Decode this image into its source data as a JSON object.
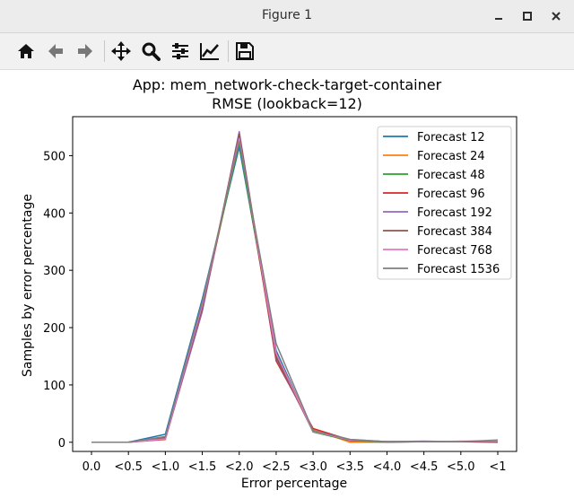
{
  "window": {
    "title": "Figure 1"
  },
  "toolbar": {
    "icons": [
      "home-icon",
      "back-arrow-icon",
      "forward-arrow-icon",
      "pan-icon",
      "zoom-icon",
      "configure-subplots-icon",
      "edit-axis-icon",
      "save-icon"
    ]
  },
  "chart_data": {
    "type": "line",
    "title": "App: mem_network-check-target-container",
    "subtitle": "RMSE (lookback=12)",
    "xlabel": "Error percentage",
    "ylabel": "Samples by error percentage",
    "categories": [
      "0.0",
      "<0.5",
      "<1.0",
      "<1.5",
      "<2.0",
      "<2.5",
      "<3.0",
      "<3.5",
      "<4.0",
      "<4.5",
      "<5.0",
      "<1"
    ],
    "yticks": [
      0,
      100,
      200,
      300,
      400,
      500
    ],
    "ylim": [
      -16,
      568
    ],
    "legend_position": "upper right",
    "series": [
      {
        "name": "Forecast 12",
        "color": "#1f77b4",
        "values": [
          0,
          0,
          14,
          250,
          515,
          160,
          18,
          3,
          1,
          1,
          1,
          2
        ]
      },
      {
        "name": "Forecast 24",
        "color": "#ff7f0e",
        "values": [
          0,
          0,
          7,
          232,
          528,
          153,
          22,
          0,
          0,
          1,
          1,
          0
        ]
      },
      {
        "name": "Forecast 48",
        "color": "#2ca02c",
        "values": [
          0,
          0,
          9,
          238,
          522,
          150,
          18,
          3,
          0,
          1,
          1,
          1
        ]
      },
      {
        "name": "Forecast 96",
        "color": "#d62728",
        "values": [
          0,
          0,
          5,
          230,
          535,
          142,
          24,
          4,
          1,
          1,
          1,
          0
        ]
      },
      {
        "name": "Forecast 192",
        "color": "#9467bd",
        "values": [
          0,
          0,
          6,
          228,
          542,
          146,
          20,
          5,
          1,
          2,
          1,
          1
        ]
      },
      {
        "name": "Forecast 384",
        "color": "#8c564b",
        "values": [
          0,
          0,
          8,
          234,
          538,
          148,
          20,
          3,
          1,
          1,
          1,
          1
        ]
      },
      {
        "name": "Forecast 768",
        "color": "#e377c2",
        "values": [
          0,
          0,
          6,
          240,
          530,
          155,
          19,
          4,
          1,
          1,
          2,
          2
        ]
      },
      {
        "name": "Forecast 1536",
        "color": "#7f7f7f",
        "values": [
          0,
          0,
          10,
          245,
          525,
          172,
          20,
          5,
          1,
          1,
          1,
          4
        ]
      }
    ]
  }
}
